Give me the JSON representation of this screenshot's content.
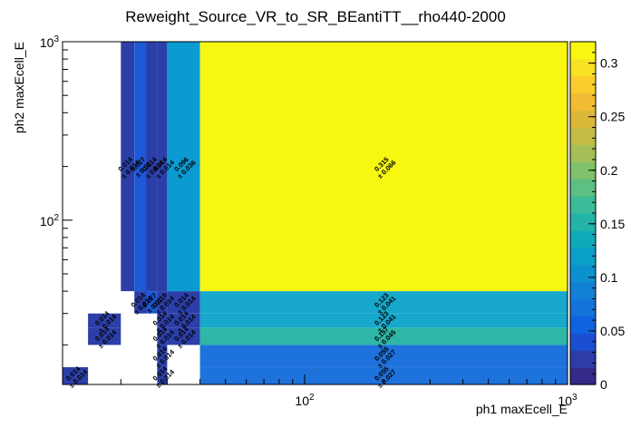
{
  "chart_data": {
    "type": "heatmap",
    "title": "Reweight_Source_VR_to_SR_BEantiTT__rho440-2000",
    "xlabel": "ph1 maxEcell_E",
    "ylabel": "ph2 maxEcell_E",
    "x_scale": "log",
    "y_scale": "log",
    "xlim": [
      12,
      1000
    ],
    "ylim": [
      12,
      1000
    ],
    "x_tick_labels": [
      {
        "base": "10",
        "exp": "2",
        "value": 100
      },
      {
        "base": "10",
        "exp": "3",
        "value": 1000
      }
    ],
    "y_tick_labels": [
      {
        "base": "10",
        "exp": "2",
        "value": 100
      },
      {
        "base": "10",
        "exp": "3",
        "value": 1000
      }
    ],
    "z_range": [
      0,
      0.32
    ],
    "colorbar_ticks": [
      "0",
      "0.05",
      "0.1",
      "0.15",
      "0.2",
      "0.25",
      "0.3"
    ],
    "colorbar_tick_values": [
      0,
      0.05,
      0.1,
      0.15,
      0.2,
      0.25,
      0.3
    ],
    "x_bin_edges": [
      12,
      15,
      20,
      22.5,
      25,
      27.5,
      30,
      40,
      1000
    ],
    "y_bin_edges": [
      12,
      15,
      20,
      25,
      30,
      40,
      1000
    ],
    "cells": [
      {
        "xbin": 0,
        "ybin": 0,
        "value": 0.014,
        "label": "0.014",
        "error": "± 0.014",
        "color": "#2c3fa8"
      },
      {
        "xbin": 1,
        "ybin": 2,
        "value": 0.014,
        "label": "0.014",
        "error": "± 0.014",
        "color": "#2c3fa8"
      },
      {
        "xbin": 1,
        "ybin": 3,
        "value": 0.014,
        "label": "0.014",
        "error": "± 0.014",
        "color": "#2c3fa8"
      },
      {
        "xbin": 2,
        "ybin": 5,
        "value": 0.014,
        "label": "0.014",
        "error": "± 0.014",
        "color": "#2c3fa8"
      },
      {
        "xbin": 3,
        "ybin": 4,
        "value": 0.014,
        "label": "0.014",
        "error": "± 0.014",
        "color": "#2c3fa8"
      },
      {
        "xbin": 3,
        "ybin": 5,
        "value": 0.027,
        "label": "0.027",
        "error": "± 0.01",
        "color": "#1d58d6"
      },
      {
        "xbin": 4,
        "ybin": 4,
        "value": 0.027,
        "label": "0.027",
        "error": "± 0.01",
        "color": "#1d58d6"
      },
      {
        "xbin": 4,
        "ybin": 5,
        "value": 0.014,
        "label": "0.014",
        "error": "± 0.014",
        "color": "#2c3fa8"
      },
      {
        "xbin": 5,
        "ybin": 0,
        "value": 0.014,
        "label": "0.014",
        "error": "± 0.014",
        "color": "#2c3fa8"
      },
      {
        "xbin": 5,
        "ybin": 1,
        "value": 0.014,
        "label": "0.014",
        "error": "± 0.014",
        "color": "#2c3fa8"
      },
      {
        "xbin": 5,
        "ybin": 2,
        "value": 0.014,
        "label": "0.014",
        "error": "± 0.014",
        "color": "#2c3fa8"
      },
      {
        "xbin": 5,
        "ybin": 3,
        "value": 0.014,
        "label": "0.014",
        "error": "± 0.014",
        "color": "#2c3fa8"
      },
      {
        "xbin": 5,
        "ybin": 4,
        "value": 0.019,
        "label": "0.019",
        "error": "± 0.014",
        "color": "#2c3fa8"
      },
      {
        "xbin": 5,
        "ybin": 5,
        "value": 0.014,
        "label": "0.014",
        "error": "± 0.014",
        "color": "#2c3fa8"
      },
      {
        "xbin": 6,
        "ybin": 2,
        "value": 0.014,
        "label": "0.014",
        "error": "± 0.014",
        "color": "#2c3fa8"
      },
      {
        "xbin": 6,
        "ybin": 3,
        "value": 0.014,
        "label": "0.014",
        "error": "± 0.014",
        "color": "#2c3fa8"
      },
      {
        "xbin": 6,
        "ybin": 4,
        "value": 0.014,
        "label": "0.014",
        "error": "± 0.014",
        "color": "#2c3fa8"
      },
      {
        "xbin": 6,
        "ybin": 5,
        "value": 0.096,
        "label": "0.096",
        "error": "± 0.036",
        "color": "#0c9bd1"
      },
      {
        "xbin": 7,
        "ybin": 0,
        "value": 0.055,
        "label": "0.055",
        "error": "± 0.027",
        "color": "#1d72db"
      },
      {
        "xbin": 7,
        "ybin": 1,
        "value": 0.055,
        "label": "0.055",
        "error": "± 0.027",
        "color": "#1d72db"
      },
      {
        "xbin": 7,
        "ybin": 2,
        "value": 0.157,
        "label": "0.157",
        "error": "± 0.045",
        "color": "#2eb7a6"
      },
      {
        "xbin": 7,
        "ybin": 3,
        "value": 0.123,
        "label": "0.123",
        "error": "± 0.041",
        "color": "#17a8cc"
      },
      {
        "xbin": 7,
        "ybin": 4,
        "value": 0.123,
        "label": "0.123",
        "error": "± 0.041",
        "color": "#17a8cc"
      },
      {
        "xbin": 7,
        "ybin": 5,
        "value": 0.315,
        "label": "0.315",
        "error": "± 0.066",
        "color": "#f7f711"
      }
    ],
    "colorbar_colors": [
      "#352a87",
      "#2e3ca8",
      "#1a4fd2",
      "#0f62e0",
      "#1472db",
      "#1281d3",
      "#0c91cf",
      "#0a9fc8",
      "#0eaab8",
      "#24b3a8",
      "#3bbb98",
      "#5cc082",
      "#80c16b",
      "#a3bf55",
      "#c2bc45",
      "#dcb83a",
      "#f1bb34",
      "#fbcd2e",
      "#f8e223",
      "#f9f711"
    ]
  }
}
